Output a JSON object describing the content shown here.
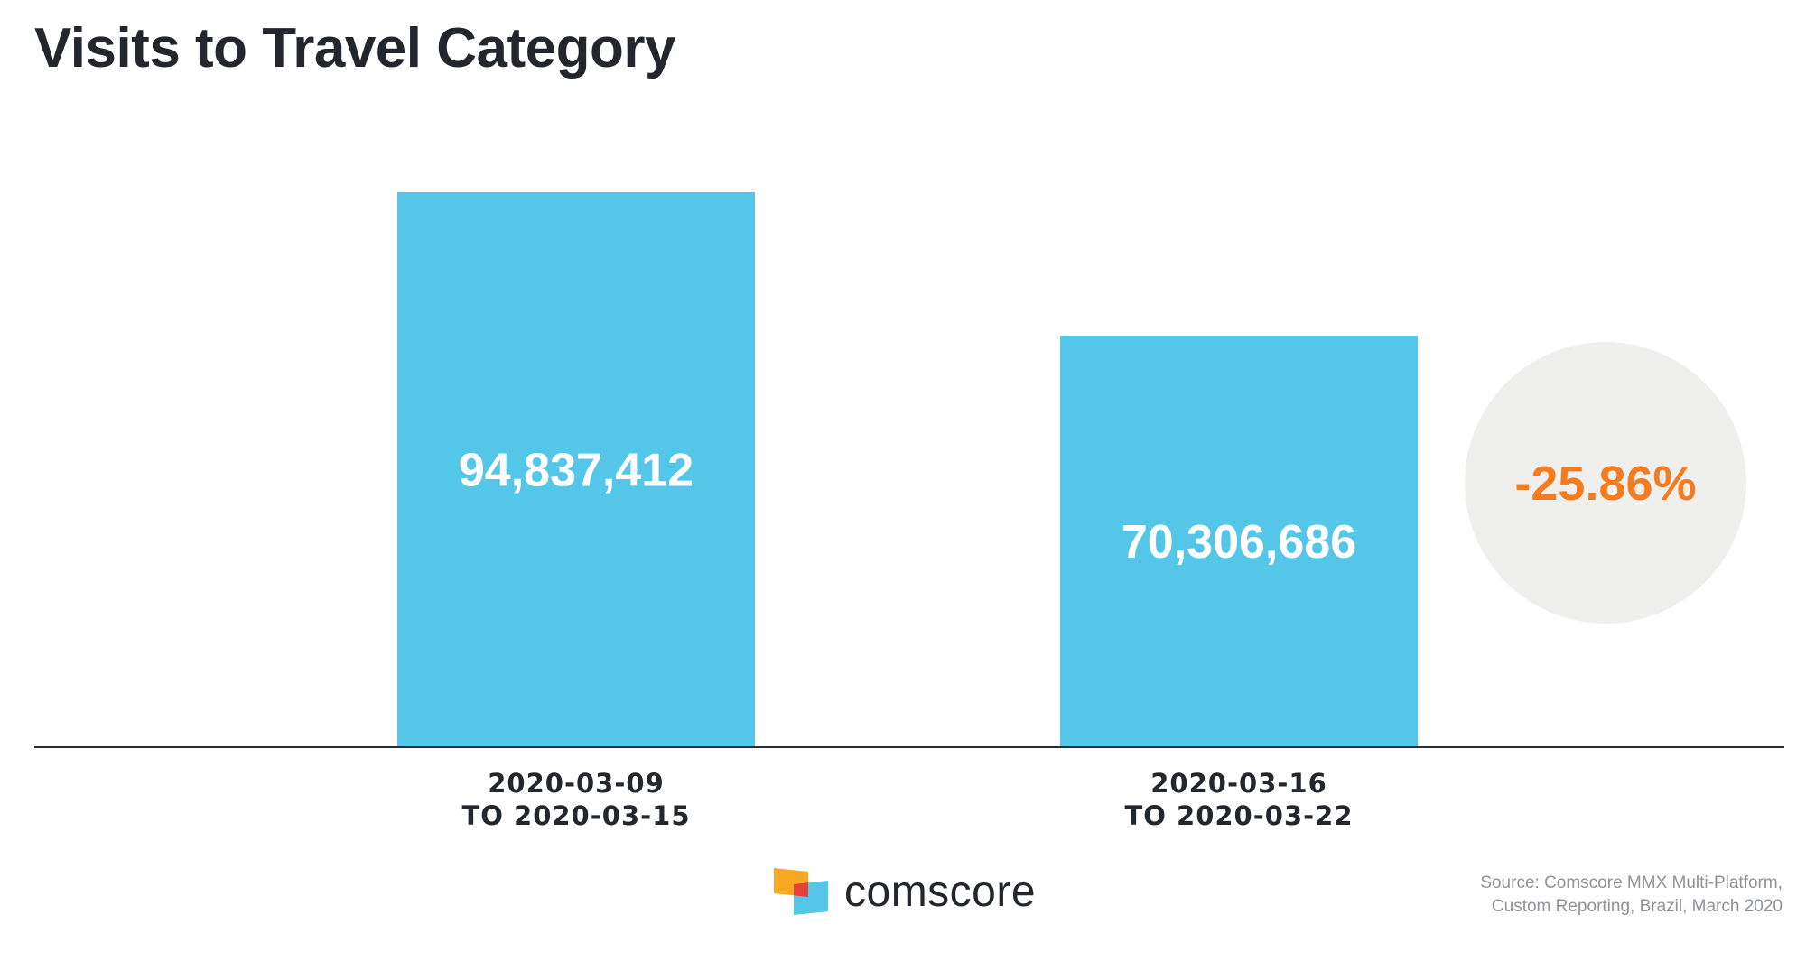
{
  "chart_data": {
    "type": "bar",
    "title": "Visits to Travel Category",
    "categories": [
      [
        "2020-03-09",
        "TO 2020-03-15"
      ],
      [
        "2020-03-16",
        "TO 2020-03-22"
      ]
    ],
    "values": [
      94837412,
      70306686
    ],
    "value_labels": [
      "94,837,412",
      "70,306,686"
    ],
    "change_label": "-25.86%",
    "xlabel": "",
    "ylabel": "",
    "ylim": [
      0,
      94837412
    ],
    "grid": false,
    "colors": {
      "bar": "#54c6e8",
      "bar_value_text": "#ffffff",
      "change_text": "#f47c20",
      "change_circle": "#efefee",
      "axis": "#2b2d33",
      "text": "#23262d"
    }
  },
  "brand": {
    "name": "comscore",
    "icon": "comscore-logo-icon"
  },
  "source": {
    "line1": "Source: Comscore MMX Multi-Platform,",
    "line2": "Custom Reporting, Brazil, March 2020"
  }
}
